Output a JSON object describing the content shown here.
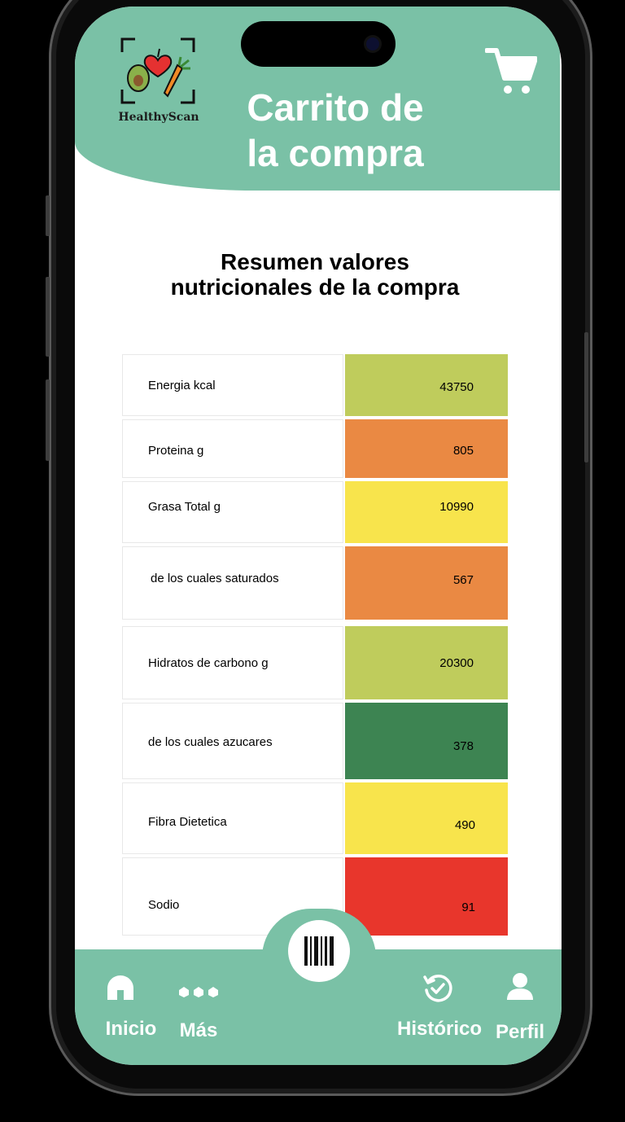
{
  "app": {
    "logo_text": "HealthyScan",
    "title": "Carrito de\nla compra"
  },
  "summary": {
    "title": "Resumen valores\nnutricionales de la compra"
  },
  "nutrients": [
    {
      "label": "Energia kcal",
      "value": "43750",
      "color": "#bfcc5c"
    },
    {
      "label": "Proteina g",
      "value": "805",
      "color": "#ea8943"
    },
    {
      "label": "Grasa Total g",
      "value": "10990",
      "color": "#f8e44c"
    },
    {
      "label": "de los cuales saturados",
      "value": "567",
      "color": "#ea8943"
    },
    {
      "label": "Hidratos de carbono g",
      "value": "20300",
      "color": "#bfcc5c"
    },
    {
      "label": "de los cuales azucares",
      "value": "378",
      "color": "#3d8452"
    },
    {
      "label": "Fibra Dietetica",
      "value": "490",
      "color": "#f8e44c"
    },
    {
      "label": "Sodio",
      "value": "91",
      "color": "#e8362c"
    }
  ],
  "nav": {
    "inicio": "Inicio",
    "mas": "Más",
    "historico": "Histórico",
    "perfil": "Perfil"
  },
  "colors": {
    "brand": "#7ac1a6"
  }
}
